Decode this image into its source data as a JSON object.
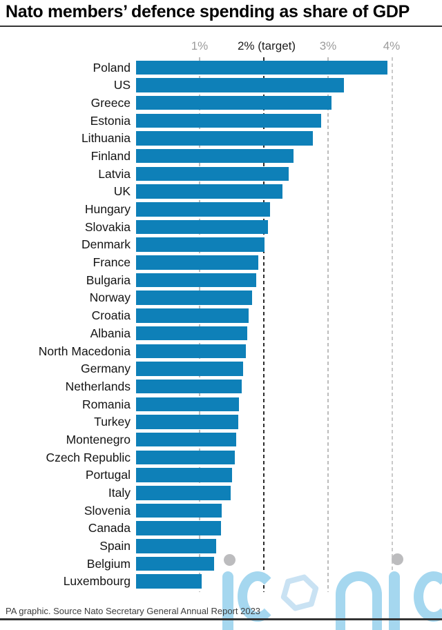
{
  "header": {
    "title": "Nato members’ defence spending as share of GDP"
  },
  "chart_data": {
    "type": "bar",
    "orientation": "horizontal",
    "title": "Nato members’ defence spending as share of GDP",
    "unit": "% of GDP",
    "xlim": [
      0,
      4.3
    ],
    "grid": "dashed-vertical",
    "target_value": 2,
    "x_ticks": [
      {
        "label": "1%",
        "value": 1,
        "emphasis": false
      },
      {
        "label": "2% (target)",
        "value": 2,
        "emphasis": true
      },
      {
        "label": "3%",
        "value": 3,
        "emphasis": false
      },
      {
        "label": "4%",
        "value": 4,
        "emphasis": false
      }
    ],
    "categories": [
      "Poland",
      "US",
      "Greece",
      "Estonia",
      "Lithuania",
      "Finland",
      "Latvia",
      "UK",
      "Hungary",
      "Slovakia",
      "Denmark",
      "France",
      "Bulgaria",
      "Norway",
      "Croatia",
      "Albania",
      "North Macedonia",
      "Germany",
      "Netherlands",
      "Romania",
      "Turkey",
      "Montenegro",
      "Czech Republic",
      "Portugal",
      "Italy",
      "Slovenia",
      "Canada",
      "Spain",
      "Belgium",
      "Luxembourg"
    ],
    "values": [
      3.92,
      3.24,
      3.05,
      2.89,
      2.76,
      2.46,
      2.38,
      2.29,
      2.09,
      2.06,
      2.01,
      1.91,
      1.88,
      1.81,
      1.76,
      1.74,
      1.71,
      1.67,
      1.65,
      1.61,
      1.59,
      1.56,
      1.54,
      1.5,
      1.48,
      1.34,
      1.33,
      1.25,
      1.22,
      1.02
    ]
  },
  "footer": {
    "source": "PA graphic. Source Nato Secretary General Annual Report 2023"
  },
  "watermark": {
    "text": "iconic"
  },
  "colors": {
    "bar": "#0e80b8",
    "target_line": "#2b2b2b",
    "gridline": "#bcbcbc",
    "axis_text_gray": "#9b9b9b",
    "axis_text_dark": "#1c1c1c",
    "watermark_blue": "#a5d7ef",
    "watermark_hex_blue": "#c9e2f3",
    "watermark_dot_gray": "#bcbcbe"
  }
}
